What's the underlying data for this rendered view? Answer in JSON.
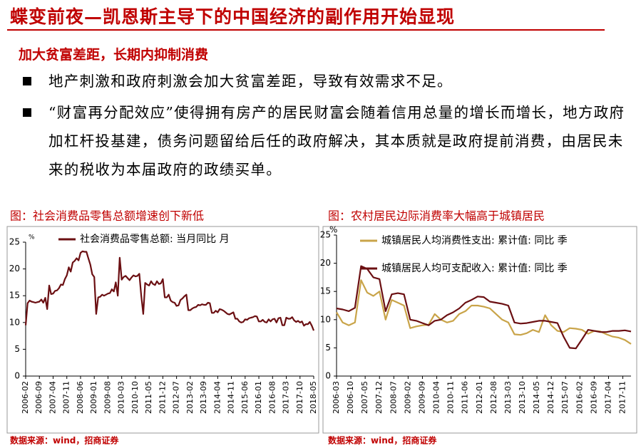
{
  "header": {
    "title": "蝶变前夜—凯恩斯主导下的中国经济的副作用开始显现"
  },
  "section_title": "加大贫富差距，长期内抑制消费",
  "bullets": [
    "地产刺激和政府刺激会加大贫富差距，导致有效需求不足。",
    "“财富再分配效应”使得拥有房产的居民财富会随着信用总量的增长而增长，地方政府加杠杆投基建，债务问题留给后任的政府解决，其本质就是政府提前消费，由居民未来的税收为本届政府的政绩买单。"
  ],
  "chart_data": [
    {
      "type": "line",
      "title": "图：社会消费品零售总额增速创下新低",
      "unit": "%",
      "source": "数据来源：wind，招商证券",
      "categories": [
        "2006-02",
        null,
        null,
        null,
        null,
        null,
        null,
        "2006-09",
        null,
        null,
        null,
        null,
        null,
        null,
        "2007-04",
        null,
        null,
        null,
        null,
        null,
        null,
        "2007-11",
        null,
        null,
        null,
        null,
        null,
        null,
        "2008-06",
        null,
        null,
        null,
        null,
        null,
        null,
        "2009-01",
        null,
        null,
        null,
        null,
        null,
        null,
        "2009-08",
        null,
        null,
        null,
        null,
        null,
        null,
        "2010-03",
        null,
        null,
        null,
        null,
        null,
        null,
        "2010-10",
        null,
        null,
        null,
        null,
        null,
        null,
        "2011-05",
        null,
        null,
        null,
        null,
        null,
        null,
        "2011-12",
        null,
        null,
        null,
        null,
        null,
        null,
        "2012-07",
        null,
        null,
        null,
        null,
        null,
        null,
        "2013-02",
        null,
        null,
        null,
        null,
        null,
        null,
        "2013-09",
        null,
        null,
        null,
        null,
        null,
        null,
        "2014-04",
        null,
        null,
        null,
        null,
        null,
        null,
        "2014-11",
        null,
        null,
        null,
        null,
        null,
        null,
        "2015-06",
        null,
        null,
        null,
        null,
        null,
        null,
        "2016-01",
        null,
        null,
        null,
        null,
        null,
        null,
        "2016-08",
        null,
        null,
        null,
        null,
        null,
        null,
        "2017-03",
        null,
        null,
        null,
        null,
        null,
        null,
        "2017-10",
        null,
        null,
        null,
        null,
        null,
        null,
        "2018-05"
      ],
      "series": [
        {
          "name": "社会消费品零售总额: 当月同比  月",
          "color": "#6b0f12",
          "values": [
            9.5,
            13.6,
            14.1,
            13.9,
            13.8,
            13.7,
            13.8,
            13.9,
            14.3,
            13.7,
            14.6,
            12.5,
            16.9,
            15.3,
            15.4,
            15.9,
            16.0,
            16.4,
            17.1,
            17.0,
            18.1,
            18.8,
            20.3,
            19.5,
            21.2,
            21.5,
            22.0,
            21.6,
            23.0,
            23.3,
            23.2,
            23.2,
            22.0,
            20.8,
            19.0,
            18.5,
            11.6,
            14.7,
            14.8,
            15.2,
            15.0,
            15.2,
            15.4,
            15.5,
            16.2,
            15.8,
            17.5,
            15.0,
            22.1,
            18.0,
            18.5,
            18.7,
            18.3,
            17.9,
            18.4,
            18.8,
            18.6,
            18.7,
            19.1,
            15.0,
            11.6,
            17.4,
            17.1,
            16.9,
            17.7,
            17.2,
            17.0,
            17.7,
            17.2,
            17.3,
            18.1,
            14.7,
            14.7,
            15.2,
            14.1,
            13.8,
            13.7,
            13.1,
            13.2,
            14.2,
            14.5,
            14.9,
            15.2,
            12.3,
            12.3,
            12.6,
            12.8,
            12.9,
            13.3,
            13.2,
            13.4,
            13.3,
            13.3,
            13.7,
            13.6,
            11.8,
            11.8,
            12.2,
            11.9,
            12.5,
            12.4,
            12.2,
            11.9,
            11.6,
            11.5,
            11.7,
            11.9,
            10.7,
            10.7,
            10.2,
            10.0,
            10.1,
            10.6,
            10.5,
            10.8,
            10.9,
            11.0,
            11.2,
            11.1,
            10.2,
            10.2,
            10.5,
            10.1,
            10.0,
            10.6,
            10.2,
            10.6,
            10.7,
            10.0,
            10.8,
            10.9,
            9.5,
            9.5,
            10.9,
            10.7,
            10.7,
            11.0,
            10.4,
            10.1,
            10.3,
            10.0,
            10.2,
            9.4,
            9.7,
            9.7,
            10.1,
            9.4,
            8.5
          ]
        }
      ],
      "ylim": [
        0,
        25
      ],
      "yticks": [
        0,
        5,
        10,
        15,
        20,
        25
      ]
    },
    {
      "type": "line",
      "title": "图：农村居民边际消费率大幅高于城镇居民",
      "unit": "%",
      "source": "数据来源：wind，招商证券",
      "x": [
        "2006-03",
        "2006-06",
        "2006-09",
        "2006-12",
        "2007-03",
        "2007-06",
        "2007-09",
        "2007-12",
        "2008-03",
        "2008-06",
        "2008-09",
        "2008-12",
        "2009-03",
        "2009-06",
        "2009-09",
        "2009-12",
        "2010-03",
        "2010-06",
        "2010-09",
        "2010-12",
        "2011-03",
        "2011-06",
        "2011-09",
        "2011-12",
        "2012-03",
        "2012-06",
        "2012-09",
        "2012-12",
        "2013-03",
        "2013-06",
        "2013-09",
        "2013-12",
        "2014-03",
        "2014-06",
        "2014-09",
        "2014-12",
        "2015-03",
        "2015-06",
        "2015-09",
        "2015-12",
        "2016-03",
        "2016-06",
        "2016-09",
        "2016-12",
        "2017-03",
        "2017-06",
        "2017-09",
        "2017-12",
        "2018-03"
      ],
      "xlim": [
        "2006-03",
        "2018-03"
      ],
      "xticks": [
        "2006-03",
        "2006-10",
        "2007-05",
        "2007-12",
        "2008-07",
        "2009-02",
        "2009-09",
        "2010-04",
        "2010-11",
        "2011-06",
        "2012-01",
        "2012-08",
        "2013-03",
        "2013-10",
        "2014-05",
        "2014-12",
        "2015-07",
        "2016-02",
        "2016-09",
        "2017-04",
        "2017-11"
      ],
      "series": [
        {
          "name": "城镇居民人均消费性支出: 累计值: 同比  季",
          "color": "#c9a449",
          "values": [
            11.3,
            9.5,
            9.0,
            9.5,
            17.0,
            14.8,
            14.2,
            15.0,
            10.0,
            13.5,
            13.0,
            12.5,
            8.5,
            8.8,
            9.0,
            9.1,
            11.0,
            10.0,
            9.5,
            9.8,
            11.0,
            11.5,
            12.5,
            12.5,
            12.3,
            12.0,
            11.0,
            10.0,
            9.5,
            7.4,
            7.3,
            7.6,
            8.2,
            7.8,
            10.8,
            9.0,
            8.0,
            7.8,
            8.5,
            8.4,
            8.2,
            7.5,
            8.0,
            7.9,
            7.4,
            7.0,
            6.8,
            6.4,
            5.7
          ]
        },
        {
          "name": "城镇居民人均可支配收入: 累计值: 同比  季",
          "color": "#6b0f12",
          "values": [
            12.0,
            11.8,
            11.5,
            12.1,
            19.5,
            19.0,
            17.5,
            17.2,
            11.5,
            14.5,
            14.7,
            14.5,
            10.0,
            9.8,
            9.4,
            9.0,
            9.8,
            10.0,
            10.8,
            11.3,
            12.0,
            13.0,
            13.5,
            14.1,
            14.0,
            13.2,
            13.0,
            12.8,
            12.5,
            9.5,
            9.3,
            9.4,
            9.6,
            9.8,
            9.8,
            9.6,
            9.4,
            7.0,
            5.0,
            4.9,
            6.5,
            8.2,
            8.0,
            7.8,
            7.8,
            8.0,
            8.0,
            8.1,
            7.9
          ]
        }
      ],
      "ylim": [
        0,
        25
      ],
      "yticks": [
        0,
        5,
        10,
        15,
        20,
        25
      ]
    }
  ]
}
